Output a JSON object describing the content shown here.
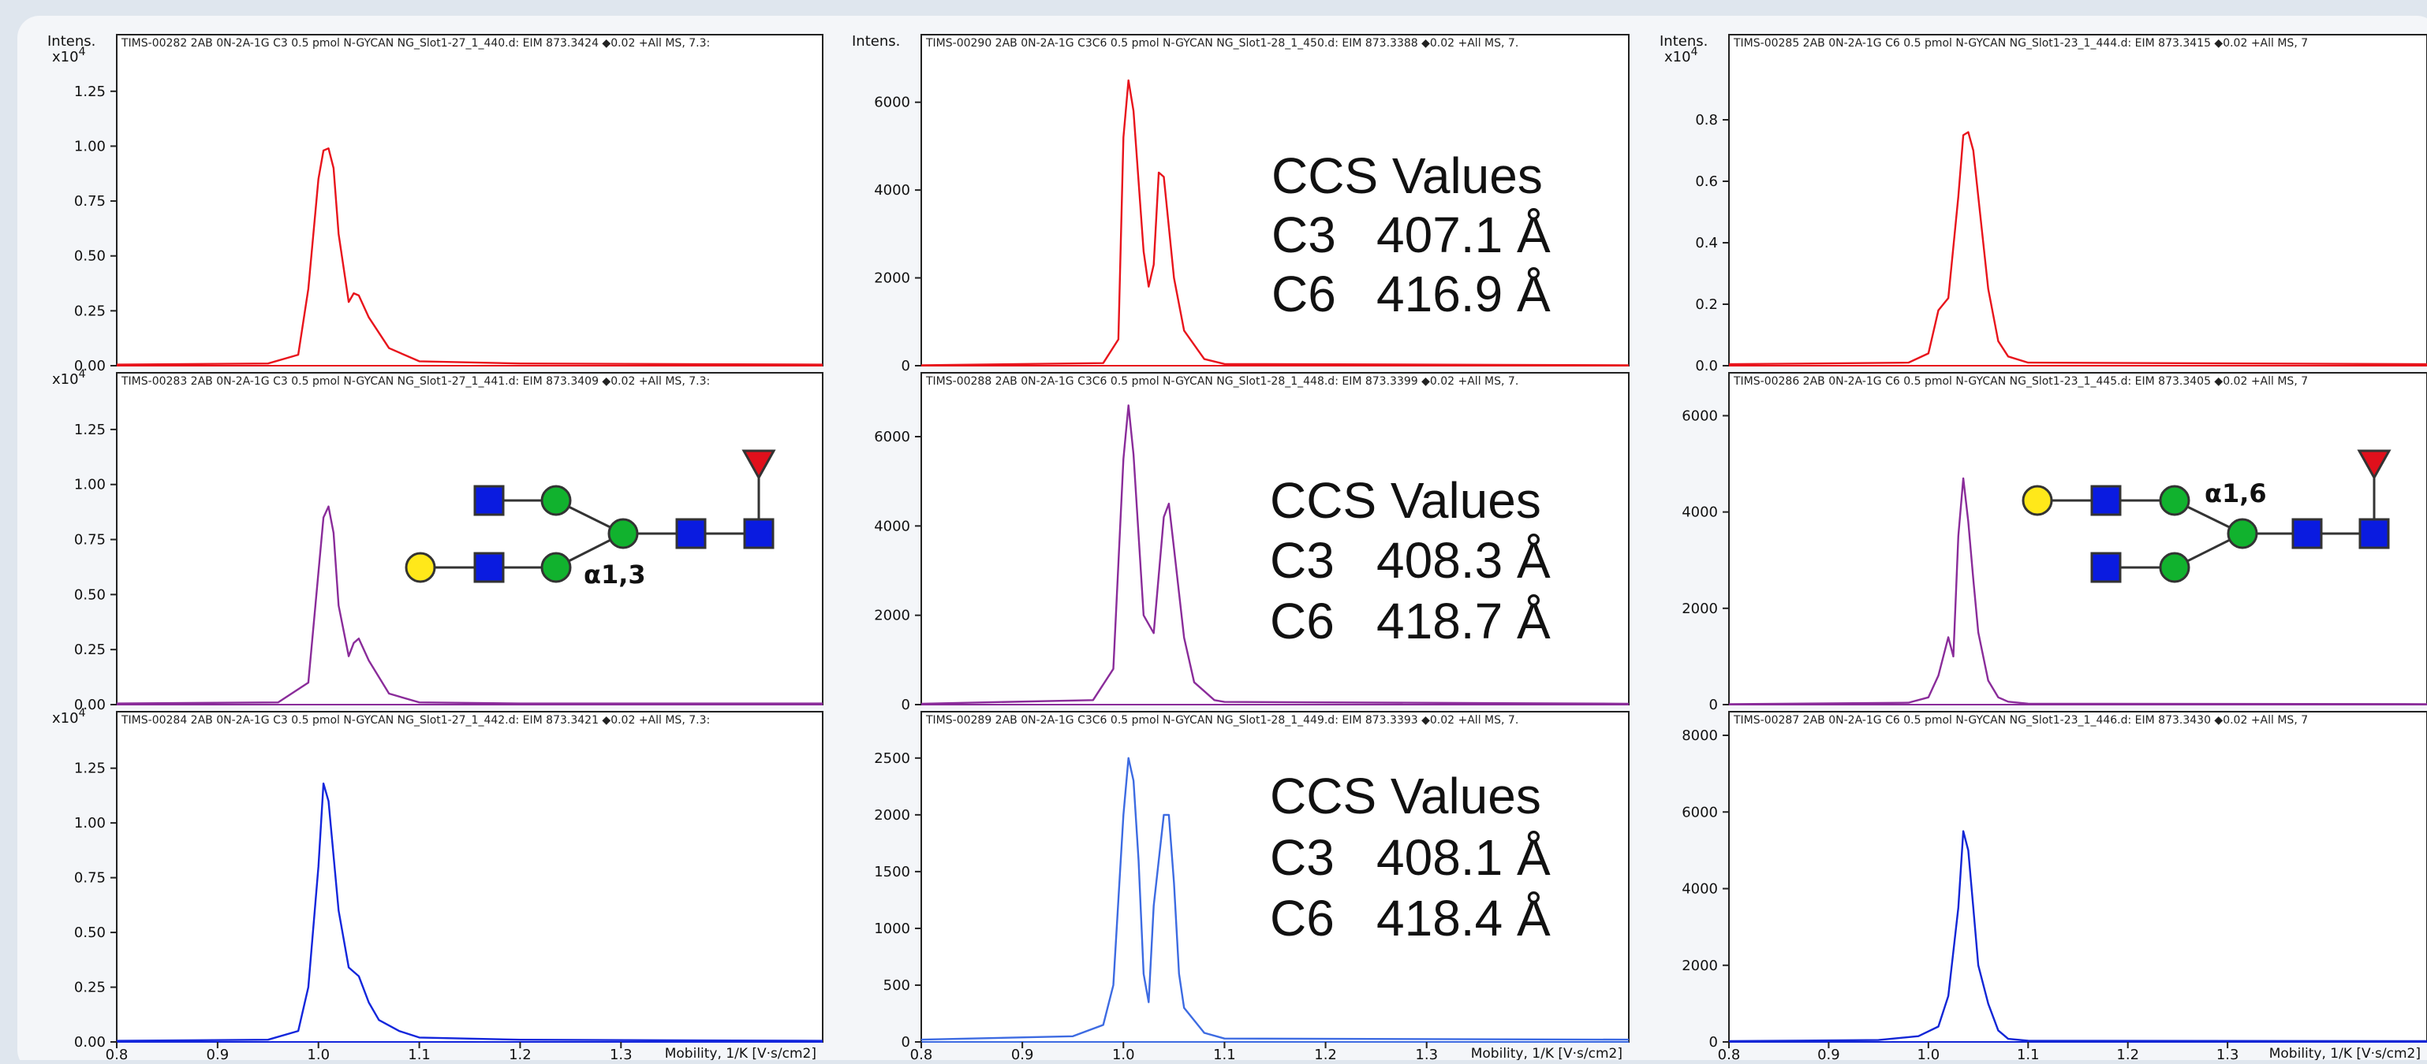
{
  "colors": {
    "background": "#dfe6ee",
    "panel_bg": "#ffffff",
    "red_trace": "#e8141c",
    "purple_trace": "#8a2c9a",
    "blue_trace_left": "#1326dc",
    "blue_trace_mid": "#3d6be2",
    "blue_trace_right": "#1226d6",
    "glycan_blue": "#0a1be0",
    "glycan_green": "#11b22e",
    "glycan_yellow": "#ffe81a",
    "glycan_red": "#e0101c"
  },
  "columns": [
    {
      "y_axis_title": "Intens.",
      "charts": [
        {
          "type": "line",
          "title": "TIMS-00282 2AB 0N-2A-1G C3 0.5 pmol N-GYCAN NG_Slot1-27_1_440.d: EIM 873.3424 ◆0.02 +All MS, 7.3:",
          "multiplier": "x10",
          "multiplier_exp": "4",
          "ylim": [
            0,
            1.4
          ],
          "yticks": [
            "0.00",
            "0.25",
            "0.50",
            "0.75",
            "1.00",
            "1.25"
          ],
          "xlim": [
            0.8,
            1.5
          ],
          "color": "#e8141c",
          "x": [
            0.8,
            0.95,
            0.98,
            0.99,
            1.0,
            1.005,
            1.01,
            1.015,
            1.02,
            1.03,
            1.035,
            1.04,
            1.05,
            1.07,
            1.1,
            1.2,
            1.5
          ],
          "y": [
            0.005,
            0.01,
            0.05,
            0.35,
            0.85,
            0.98,
            0.99,
            0.9,
            0.6,
            0.29,
            0.33,
            0.32,
            0.22,
            0.08,
            0.02,
            0.01,
            0.005
          ]
        },
        {
          "type": "line",
          "title": "TIMS-00283 2AB 0N-2A-1G C3 0.5 pmol N-GYCAN NG_Slot1-27_1_441.d: EIM 873.3409 ◆0.02 +All MS, 7.3:",
          "multiplier": "x10",
          "multiplier_exp": "4",
          "ylim": [
            0,
            1.4
          ],
          "yticks": [
            "0.00",
            "0.25",
            "0.50",
            "0.75",
            "1.00",
            "1.25"
          ],
          "xlim": [
            0.8,
            1.5
          ],
          "color": "#8a2c9a",
          "x": [
            0.8,
            0.96,
            0.99,
            1.0,
            1.005,
            1.01,
            1.015,
            1.02,
            1.03,
            1.035,
            1.04,
            1.05,
            1.07,
            1.1,
            1.2,
            1.5
          ],
          "y": [
            0.005,
            0.01,
            0.1,
            0.6,
            0.85,
            0.9,
            0.78,
            0.45,
            0.22,
            0.28,
            0.3,
            0.2,
            0.05,
            0.01,
            0.005,
            0.005
          ]
        },
        {
          "type": "line",
          "title": "TIMS-00284 2AB 0N-2A-1G C3 0.5 pmol N-GYCAN NG_Slot1-27_1_442.d: EIM 873.3421 ◆0.02 +All MS, 7.3:",
          "multiplier": "x10",
          "multiplier_exp": "4",
          "ylim": [
            0,
            1.4
          ],
          "yticks": [
            "0.00",
            "0.25",
            "0.50",
            "0.75",
            "1.00",
            "1.25"
          ],
          "xlim": [
            0.8,
            1.5
          ],
          "color": "#1326dc",
          "x": [
            0.8,
            0.95,
            0.98,
            0.99,
            1.0,
            1.005,
            1.01,
            1.02,
            1.03,
            1.04,
            1.05,
            1.06,
            1.08,
            1.1,
            1.2,
            1.5
          ],
          "y": [
            0.005,
            0.01,
            0.05,
            0.25,
            0.8,
            1.18,
            1.1,
            0.6,
            0.34,
            0.3,
            0.18,
            0.1,
            0.05,
            0.02,
            0.01,
            0.005
          ],
          "xticks": [
            "0.8",
            "0.9",
            "1.0",
            "1.1",
            "1.2",
            "1.3"
          ],
          "xlabel": "Mobility, 1/K  [V·s/cm2]"
        }
      ]
    },
    {
      "y_axis_title": "Intens.",
      "charts": [
        {
          "type": "line",
          "title": "TIMS-00290 2AB 0N-2A-1G C3C6 0.5 pmol N-GYCAN NG_Slot1-28_1_450.d: EIM 873.3388 ◆0.02 +All MS, 7.",
          "multiplier": "",
          "multiplier_exp": "",
          "ylim": [
            0,
            7000
          ],
          "yticks": [
            "0",
            "2000",
            "4000",
            "6000"
          ],
          "xlim": [
            0.8,
            1.5
          ],
          "color": "#e8141c",
          "x": [
            0.8,
            0.98,
            0.995,
            1.0,
            1.005,
            1.01,
            1.02,
            1.025,
            1.03,
            1.035,
            1.04,
            1.05,
            1.06,
            1.08,
            1.1,
            1.5
          ],
          "y": [
            10,
            60,
            600,
            5200,
            6500,
            5800,
            2600,
            1800,
            2300,
            4400,
            4300,
            2000,
            800,
            150,
            40,
            10
          ]
        },
        {
          "type": "line",
          "title": "TIMS-00288 2AB 0N-2A-1G C3C6 0.5 pmol N-GYCAN NG_Slot1-28_1_448.d: EIM 873.3399 ◆0.02 +All MS, 7.",
          "multiplier": "",
          "multiplier_exp": "",
          "ylim": [
            0,
            6900
          ],
          "yticks": [
            "0",
            "2000",
            "4000",
            "6000"
          ],
          "xlim": [
            0.8,
            1.5
          ],
          "color": "#8a2c9a",
          "x": [
            0.8,
            0.97,
            0.99,
            1.0,
            1.005,
            1.01,
            1.02,
            1.03,
            1.04,
            1.045,
            1.05,
            1.06,
            1.07,
            1.09,
            1.1,
            1.5
          ],
          "y": [
            20,
            100,
            800,
            5500,
            6700,
            5600,
            2000,
            1600,
            4200,
            4500,
            3500,
            1500,
            500,
            100,
            60,
            20
          ]
        },
        {
          "type": "line",
          "title": "TIMS-00289 2AB 0N-2A-1G C3C6 0.5 pmol N-GYCAN NG_Slot1-28_1_449.d: EIM 873.3393 ◆0.02 +All MS, 7.",
          "multiplier": "",
          "multiplier_exp": "",
          "ylim": [
            0,
            2700
          ],
          "yticks": [
            "0",
            "500",
            "1000",
            "1500",
            "2000",
            "2500"
          ],
          "xlim": [
            0.8,
            1.5
          ],
          "color": "#3d6be2",
          "x": [
            0.8,
            0.95,
            0.98,
            0.99,
            1.0,
            1.005,
            1.01,
            1.015,
            1.02,
            1.025,
            1.03,
            1.04,
            1.045,
            1.05,
            1.055,
            1.06,
            1.08,
            1.1,
            1.5
          ],
          "y": [
            20,
            50,
            150,
            500,
            2000,
            2500,
            2300,
            1600,
            600,
            350,
            1200,
            2000,
            2000,
            1400,
            600,
            300,
            80,
            30,
            20
          ],
          "xticks": [
            "0.8",
            "0.9",
            "1.0",
            "1.1",
            "1.2",
            "1.3"
          ],
          "xlabel": "Mobility, 1/K  [V·s/cm2]"
        }
      ]
    },
    {
      "y_axis_title": "Intens.",
      "charts": [
        {
          "type": "line",
          "title": "TIMS-00285 2AB 0N-2A-1G C6 0.5 pmol N-GYCAN NG_Slot1-23_1_444.d: EIM 873.3415 ◆0.02 +All MS, 7",
          "multiplier": "x10",
          "multiplier_exp": "4",
          "ylim": [
            0,
            1.0
          ],
          "yticks": [
            "0.0",
            "0.2",
            "0.4",
            "0.6",
            "0.8"
          ],
          "xlim": [
            0.8,
            1.5
          ],
          "color": "#e8141c",
          "x": [
            0.8,
            0.98,
            1.0,
            1.01,
            1.02,
            1.03,
            1.035,
            1.04,
            1.045,
            1.05,
            1.06,
            1.07,
            1.08,
            1.1,
            1.5
          ],
          "y": [
            0.005,
            0.01,
            0.04,
            0.18,
            0.22,
            0.55,
            0.75,
            0.76,
            0.7,
            0.55,
            0.25,
            0.08,
            0.03,
            0.01,
            0.005
          ]
        },
        {
          "type": "line",
          "title": "TIMS-00286 2AB 0N-2A-1G C6 0.5 pmol N-GYCAN NG_Slot1-23_1_445.d: EIM 873.3405 ◆0.02 +All MS, 7",
          "multiplier": "",
          "multiplier_exp": "",
          "ylim": [
            0,
            6400
          ],
          "yticks": [
            "0",
            "2000",
            "4000",
            "6000"
          ],
          "xlim": [
            0.8,
            1.5
          ],
          "color": "#8a2c9a",
          "x": [
            0.8,
            0.98,
            1.0,
            1.01,
            1.02,
            1.025,
            1.03,
            1.035,
            1.04,
            1.045,
            1.05,
            1.06,
            1.07,
            1.08,
            1.1,
            1.5
          ],
          "y": [
            10,
            40,
            150,
            600,
            1400,
            1000,
            3500,
            4700,
            3800,
            2600,
            1500,
            500,
            150,
            60,
            20,
            10
          ]
        },
        {
          "type": "line",
          "title": "TIMS-00287 2AB 0N-2A-1G C6 0.5 pmol N-GYCAN NG_Slot1-23_1_446.d: EIM 873.3430 ◆0.02 +All MS, 7",
          "multiplier": "",
          "multiplier_exp": "",
          "ylim": [
            0,
            8000
          ],
          "yticks": [
            "0",
            "2000",
            "4000",
            "6000",
            "8000"
          ],
          "xlim": [
            0.8,
            1.5
          ],
          "color": "#1226d6",
          "x": [
            0.8,
            0.95,
            0.99,
            1.01,
            1.02,
            1.03,
            1.035,
            1.04,
            1.045,
            1.05,
            1.06,
            1.07,
            1.08,
            1.1,
            1.5
          ],
          "y": [
            20,
            50,
            150,
            400,
            1200,
            3500,
            5500,
            5000,
            3500,
            2000,
            1000,
            300,
            80,
            30,
            20
          ],
          "xticks": [
            "0.8",
            "0.9",
            "1.0",
            "1.1",
            "1.2",
            "1.3"
          ],
          "xlabel": "Mobility, 1/K  [V·s/cm2]"
        }
      ]
    }
  ],
  "ccs_blocks": [
    {
      "title": "CCS Values",
      "rows": [
        {
          "label": "C3",
          "value": "407.1 Å"
        },
        {
          "label": "C6",
          "value": "416.9 Å"
        }
      ]
    },
    {
      "title": "CCS Values",
      "rows": [
        {
          "label": "C3",
          "value": "408.3 Å"
        },
        {
          "label": "C6",
          "value": "418.7 Å"
        }
      ]
    },
    {
      "title": "CCS Values",
      "rows": [
        {
          "label": "C3",
          "value": "408.1 Å"
        },
        {
          "label": "C6",
          "value": "418.4 Å"
        }
      ]
    }
  ],
  "glycan_left": {
    "linkage_label": "α1,3"
  },
  "glycan_right": {
    "linkage_label": "α1,6"
  }
}
